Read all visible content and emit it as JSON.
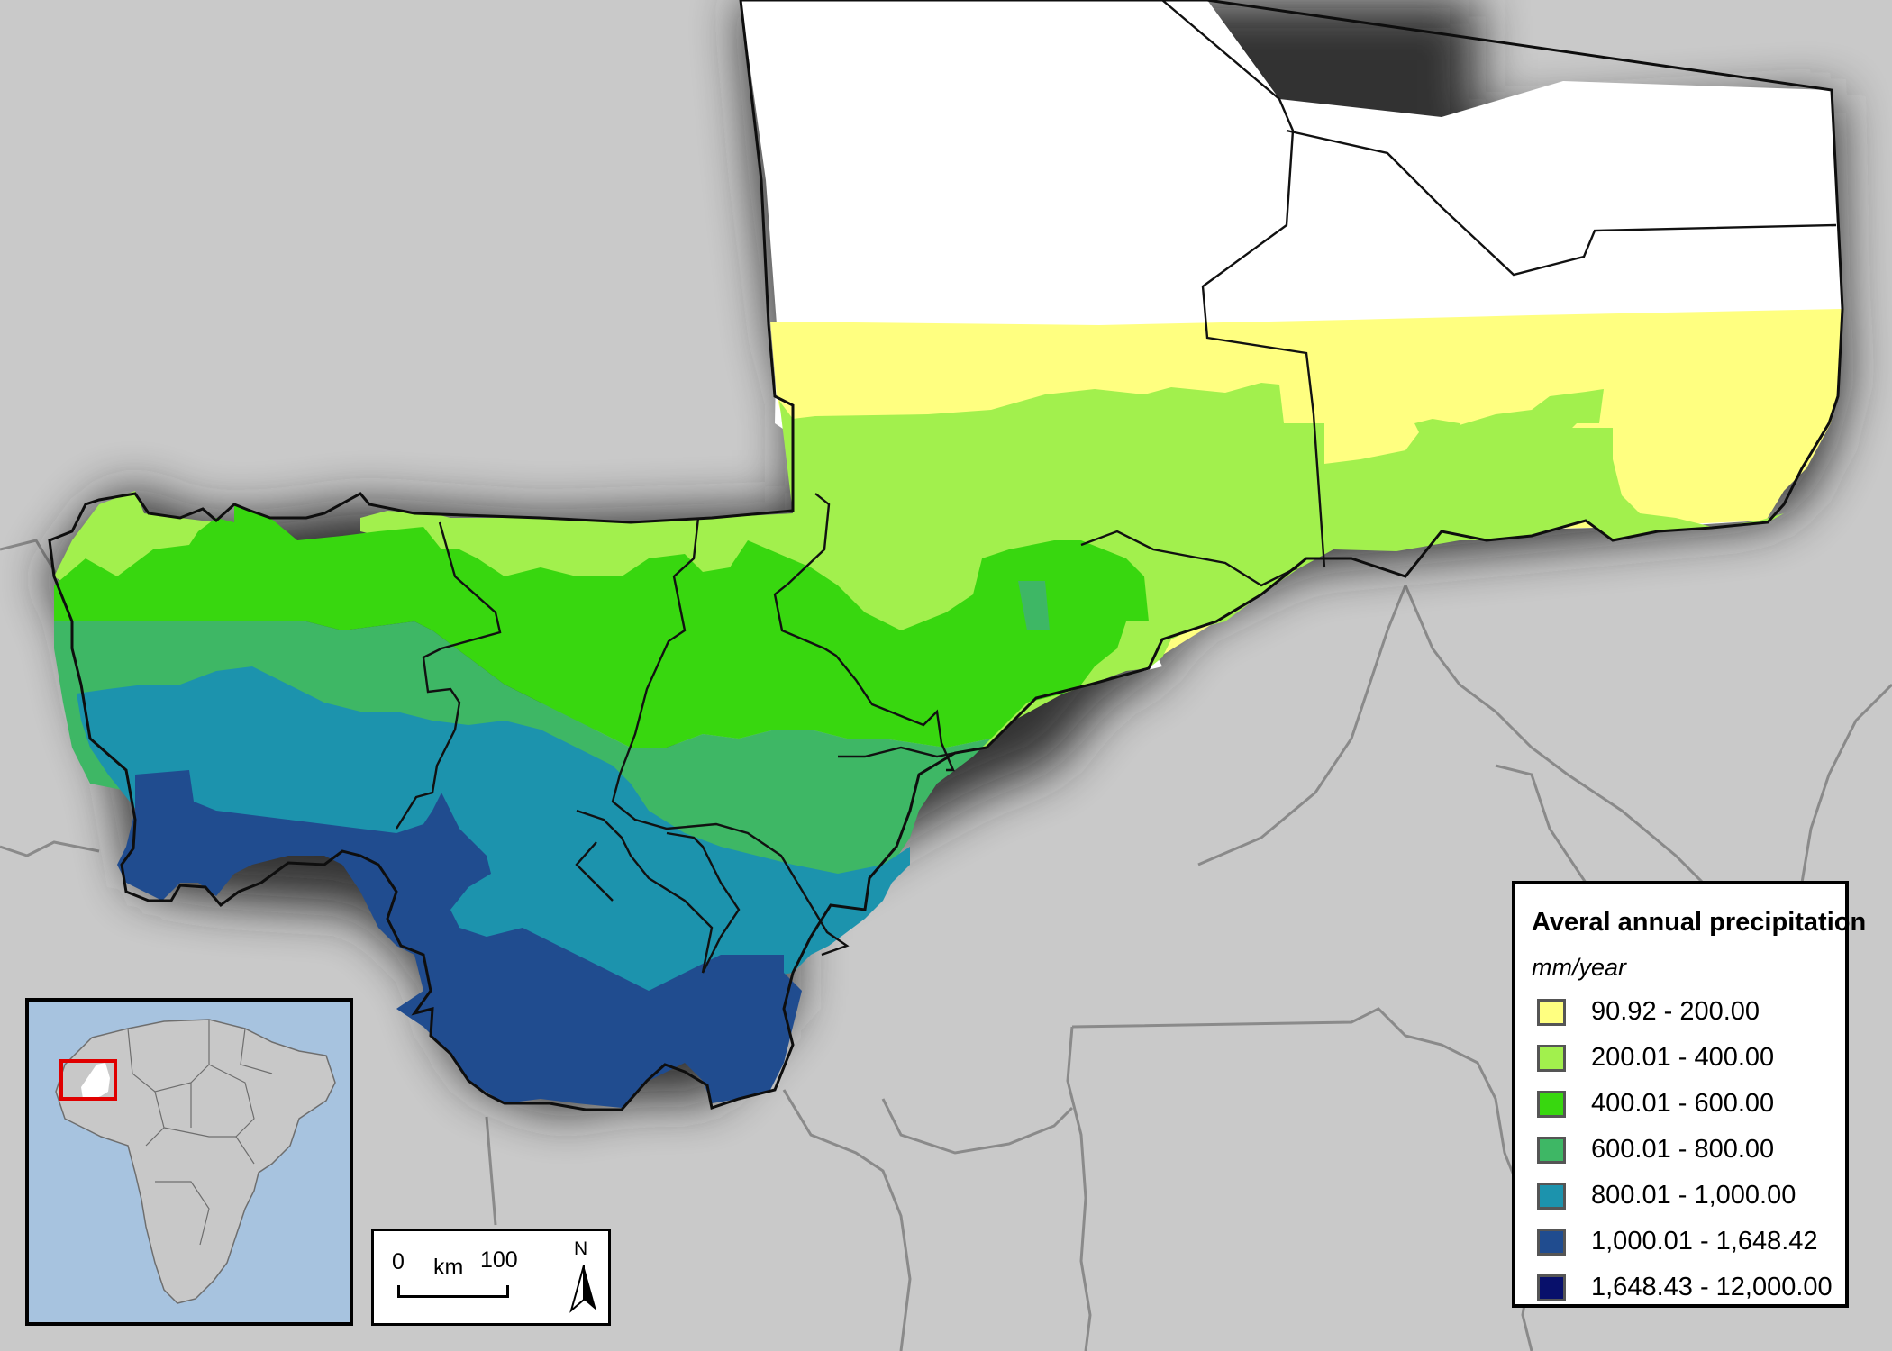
{
  "legend": {
    "title": "Averal annual precipitation",
    "unit": "mm/year",
    "classes": [
      {
        "label": "90.92 - 200.00",
        "color": "#ffff80"
      },
      {
        "label": "200.01 - 400.00",
        "color": "#a2f04d"
      },
      {
        "label": "400.01 - 600.00",
        "color": "#38d70f"
      },
      {
        "label": "600.01 - 800.00",
        "color": "#3eb765"
      },
      {
        "label": "800.01 - 1,000.00",
        "color": "#1c93ad"
      },
      {
        "label": "1,000.01 - 1,648.42",
        "color": "#204c8f"
      },
      {
        "label": "1,648.43 - 12,000.00",
        "color": "#08106b"
      }
    ]
  },
  "scale_bar": {
    "start": "0",
    "unit": "km",
    "end": "100"
  },
  "north_arrow": {
    "label": "N"
  },
  "colors": {
    "background": "#c9c9c9",
    "no_data": "#ffffff",
    "boundary": "#1a1a1a",
    "country_border": "#8a8a8a",
    "ocean": "#a7c3df",
    "inset_highlight": "#e00000"
  }
}
